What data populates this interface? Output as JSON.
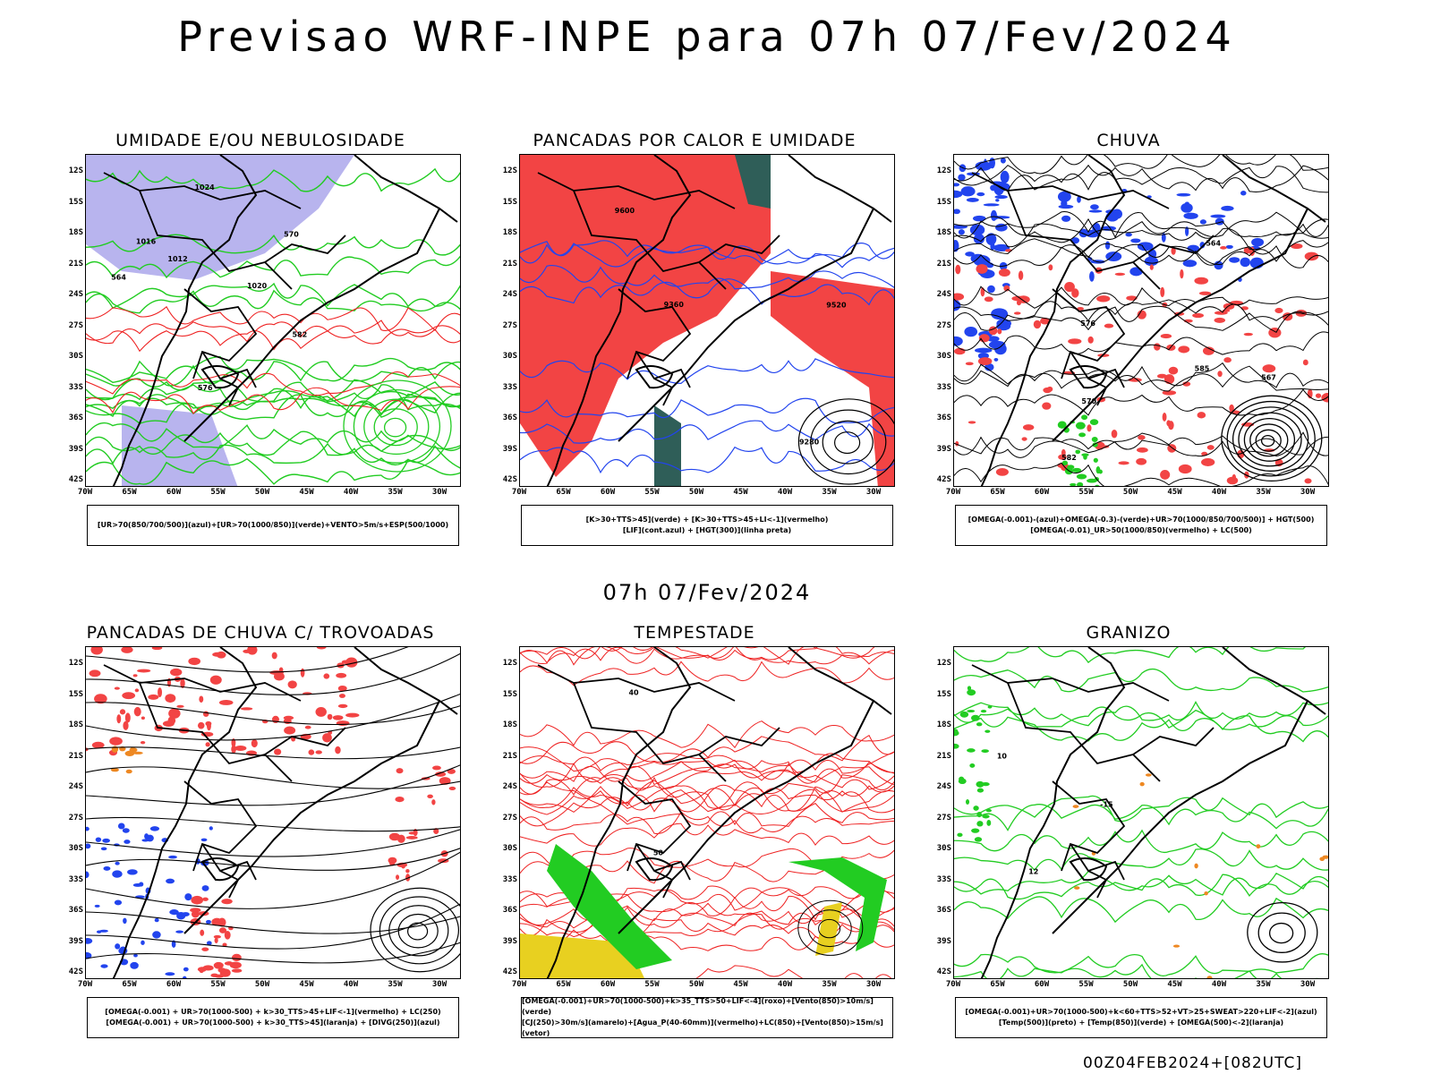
{
  "title": "Previsao WRF-INPE  para 07h 07/Fev/2024",
  "subtitle": "07h 07/Fev/2024",
  "footer": "00Z04FEB2024+[082UTC]",
  "lat_labels": [
    "12S",
    "15S",
    "18S",
    "21S",
    "24S",
    "27S",
    "30S",
    "33S",
    "36S",
    "39S",
    "42S"
  ],
  "lon_labels": [
    "70W",
    "65W",
    "60W",
    "55W",
    "50W",
    "45W",
    "40W",
    "35W",
    "30W"
  ],
  "colors": {
    "blue": "#2244ee",
    "lavender": "#b8b4ee",
    "green": "#22cc22",
    "red": "#ee2222",
    "fill_red": "#f24444",
    "dark_green": "#2f5e58",
    "orange": "#ee8822",
    "yellow": "#e8d020",
    "black": "#000000"
  },
  "panels": [
    {
      "title": "UMIDADE E/OU NEBULOSIDADE",
      "legend": [
        "[UR>70(850/700/500)](azul)+[UR>70(1000/850)](verde)+VENTO>5m/s+ESP(500/1000)"
      ],
      "contour_labels": [
        "1012",
        "1016",
        "1020",
        "1024",
        "576",
        "570",
        "564",
        "582"
      ]
    },
    {
      "title": "PANCADAS POR CALOR E UMIDADE",
      "legend": [
        "[K>30+TTS>45](verde) + [K>30+TTS>45+LI<-1](vermelho)",
        "[LIF](cont.azul) + [HGT(300)](linha preta)"
      ],
      "contour_labels": [
        "9600",
        "9520",
        "9360",
        "9280"
      ]
    },
    {
      "title": "CHUVA",
      "legend": [
        "[OMEGA(-0.001)-(azul)+OMEGA(-0.3)-(verde)+UR>70(1000/850/700/500)] + HGT(500)",
        "[OMEGA(-0.01)_UR>50(1000/850)(vermelho) + LC(500)"
      ],
      "contour_labels": [
        "582",
        "585",
        "576",
        "570",
        "567",
        "564"
      ]
    },
    {
      "title": "PANCADAS DE CHUVA C/ TROVOADAS",
      "legend": [
        "[OMEGA(-0.001) + UR>70(1000-500) + k>30_TTS>45+LIF<-1](vermelho) + LC(250)",
        "[OMEGA(-0.001) + UR>70(1000-500) + k>30_TTS>45](laranja) + [DIVG(250)](azul)"
      ],
      "contour_labels": []
    },
    {
      "title": "TEMPESTADE",
      "legend": [
        "[OMEGA(-0.001)+UR>70(1000-500)+k>35_TTS>50+LIF<-4](roxo)+[Vento(850)>10m/s](verde)",
        "[CJ(250)>30m/s](amarelo)+[Agua_P(40-60mm)](vermelho)+LC(850)+[Vento(850)>15m/s](vetor)"
      ],
      "contour_labels": [
        "50",
        "40"
      ]
    },
    {
      "title": "GRANIZO",
      "legend": [
        "[OMEGA(-0.001)+UR>70(1000-500)+k<60+TTS>52+VT>25+SWEAT>220+LIF<-2](azul)",
        "[Temp(500)](preto) + [Temp(850)](verde) + [OMEGA(500)<-2](laranja)"
      ],
      "contour_labels": [
        "-15",
        "10",
        "12"
      ]
    }
  ]
}
